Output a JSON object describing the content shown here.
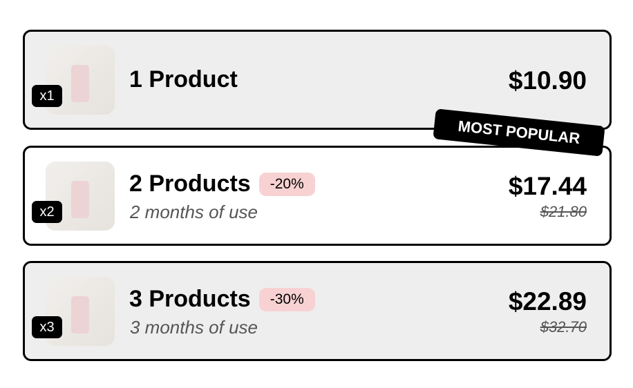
{
  "options": [
    {
      "qty": "x1",
      "title": "1 Product",
      "discount": "",
      "subtitle": "",
      "price": "$10.90",
      "old_price": ""
    },
    {
      "qty": "x2",
      "title": "2 Products",
      "discount": "-20%",
      "subtitle": "2 months of use",
      "price": "$17.44",
      "old_price": "$21.80"
    },
    {
      "qty": "x3",
      "title": "3 Products",
      "discount": "-30%",
      "subtitle": "3 months of use",
      "price": "$22.89",
      "old_price": "$32.70"
    }
  ],
  "badge": "MOST POPULAR",
  "colors": {
    "card_bg": "#eeeeee",
    "selected_bg": "#ffffff",
    "discount_bg": "#f8d2d2",
    "border": "#000000"
  }
}
